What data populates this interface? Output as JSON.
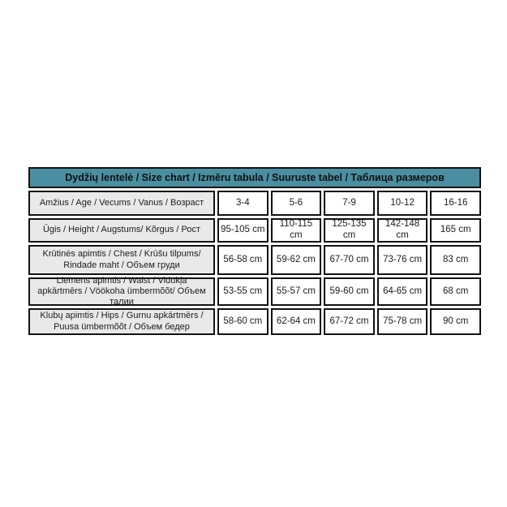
{
  "page": {
    "background": "#ffffff"
  },
  "table": {
    "title": "Dydžių lentelė / Size chart / Izmēru tabula / Suuruste tabel / Таблица размеров",
    "colors": {
      "title_background": "#4A8FA1",
      "label_background": "#E9E9E9",
      "cell_background": "#FFFFFF",
      "border": "#121212",
      "text": "#1C1C1C"
    },
    "rows": [
      {
        "label": "Amžius / Age / Vecums / Vanus / Возраст",
        "values": [
          "3-4",
          "5-6",
          "7-9",
          "10-12",
          "16-16"
        ]
      },
      {
        "label": "Ūgis / Height / Augstums/ Kõrgus / Рост",
        "values": [
          "95-105 cm",
          "110-115 cm",
          "125-135 cm",
          "142-148 cm",
          "165 cm"
        ]
      },
      {
        "label": "Krūtinės apimtis / Chest / Krūšu tilpums/ Rindade maht / Объем груди",
        "values": [
          "56-58 cm",
          "59-62 cm",
          "67-70 cm",
          "73-76 cm",
          "83 cm"
        ]
      },
      {
        "label": "Liemens apimtis / Waist / Vidukļa apkārtmērs / Vöökoha ümbermõõt/ Объем талии",
        "values": [
          "53-55 cm",
          "55-57 cm",
          "59-60 cm",
          "64-65 cm",
          "68 cm"
        ]
      },
      {
        "label": "Klubų apimtis / Hips / Gurnu apkārtmērs / Puusa ümbermõõt / Объем бедер",
        "values": [
          "58-60 cm",
          "62-64 cm",
          "67-72 cm",
          "75-78 cm",
          "90 cm"
        ]
      }
    ]
  }
}
